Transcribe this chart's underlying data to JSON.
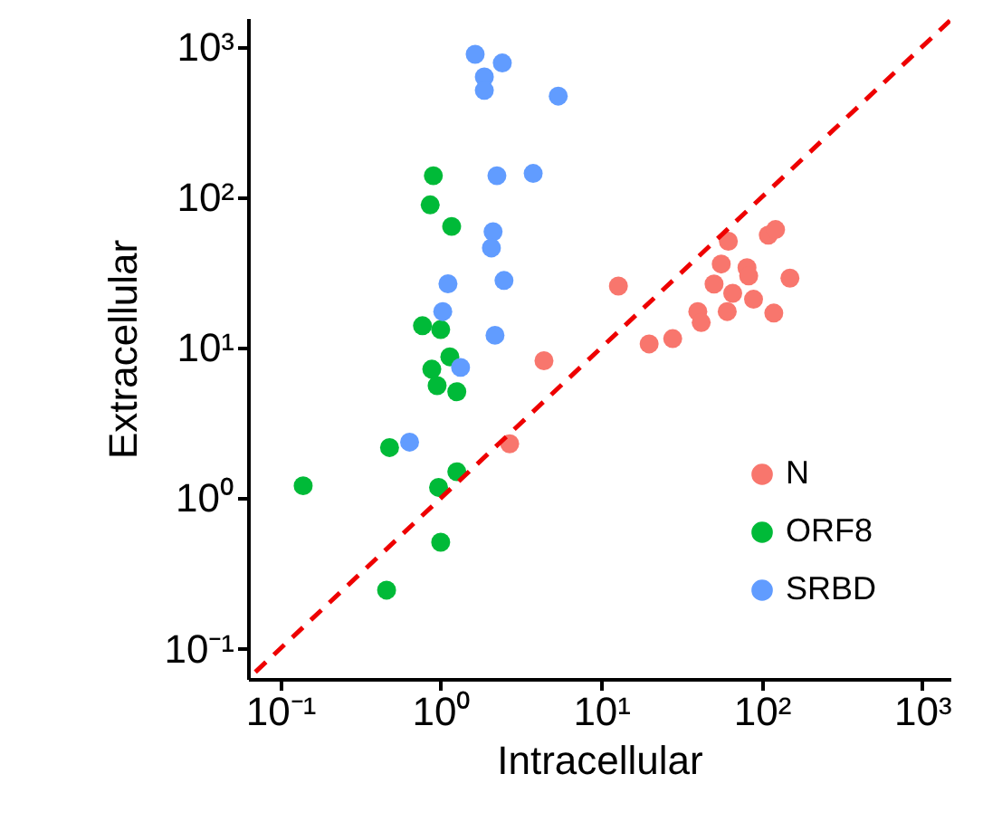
{
  "chart_data": {
    "type": "scatter",
    "xlabel": "Intracellular",
    "ylabel": "Extracellular",
    "log": "xy",
    "grid": false,
    "legend": "bottom right",
    "xlim": [
      0.063,
      1500
    ],
    "ylim": [
      0.063,
      1550
    ],
    "xticks": [
      {
        "value": 0.1,
        "label": "10⁻¹"
      },
      {
        "value": 1,
        "label": "10⁰"
      },
      {
        "value": 10,
        "label": "10¹"
      },
      {
        "value": 100,
        "label": "10²"
      },
      {
        "value": 1000,
        "label": "10³"
      }
    ],
    "yticks": [
      {
        "value": 0.1,
        "label": "10⁻¹"
      },
      {
        "value": 1,
        "label": "10⁰"
      },
      {
        "value": 10,
        "label": "10¹"
      },
      {
        "value": 100,
        "label": "10²"
      },
      {
        "value": 1000,
        "label": "10³"
      }
    ],
    "series": [
      {
        "name": "N",
        "color": "#f8766d",
        "marker": "circle",
        "x": [
          2.69,
          4.4,
          12.8,
          19.9,
          27.9,
          40,
          42,
          50.5,
          56,
          62,
          66,
          61,
          81,
          83,
          89,
          110,
          122,
          119,
          150
        ],
        "values": [
          2.3,
          8.2,
          25.7,
          10.6,
          11.5,
          17.4,
          14.7,
          26.5,
          36,
          51,
          23,
          17.4,
          34,
          30,
          21,
          56,
          61,
          17,
          29
        ]
      },
      {
        "name": "ORF8",
        "color": "#00ba38",
        "marker": "circle",
        "x": [
          0.9,
          0.86,
          1.17,
          0.77,
          1.0,
          1.14,
          0.88,
          0.95,
          1.26,
          0.48,
          1.26,
          0.97,
          0.139,
          1.0,
          0.46
        ],
        "values": [
          139,
          89,
          64,
          14,
          13.2,
          8.7,
          7.2,
          5.6,
          5.1,
          2.17,
          1.5,
          1.18,
          1.21,
          0.51,
          0.245
        ]
      },
      {
        "name": "SRBD",
        "color": "#619cff",
        "marker": "circle",
        "x": [
          1.64,
          2.42,
          1.87,
          1.87,
          5.4,
          2.24,
          3.77,
          2.12,
          2.07,
          1.11,
          2.48,
          1.03,
          2.18,
          1.33,
          0.64
        ],
        "values": [
          891,
          780,
          630,
          513,
          470,
          139,
          144,
          59,
          46,
          26.6,
          28,
          17.4,
          12.1,
          7.4,
          2.36
        ]
      },
      {
        "type": "line",
        "marker": "none",
        "color": "#ee0000",
        "line_style": "dashed",
        "x": [
          0.07,
          1500
        ],
        "values": [
          0.07,
          1500
        ]
      }
    ]
  }
}
